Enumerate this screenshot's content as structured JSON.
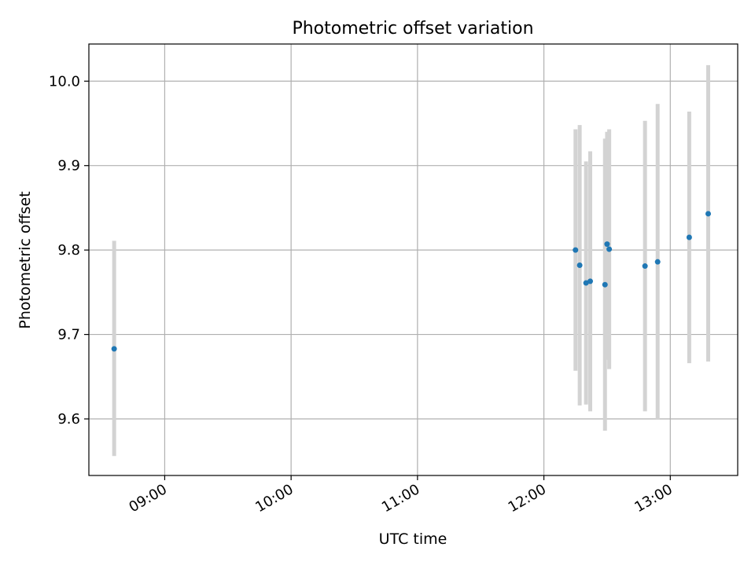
{
  "chart_data": {
    "type": "scatter",
    "title": "Photometric offset variation",
    "xlabel": "UTC time",
    "ylabel": "Photometric offset",
    "grid": true,
    "xlim": [
      "08:24",
      "13:32"
    ],
    "ylim": [
      9.533,
      10.044
    ],
    "x_ticks": [
      "09:00",
      "10:00",
      "11:00",
      "12:00",
      "13:00"
    ],
    "y_ticks": [
      "9.6",
      "9.7",
      "9.8",
      "9.9",
      "10.0"
    ],
    "series": [
      {
        "points": [
          {
            "x": "08:36",
            "y": 9.683,
            "low": 9.556,
            "high": 9.811
          },
          {
            "x": "12:15",
            "y": 9.8,
            "low": 9.657,
            "high": 9.943
          },
          {
            "x": "12:17",
            "y": 9.782,
            "low": 9.616,
            "high": 9.948
          },
          {
            "x": "12:20",
            "y": 9.761,
            "low": 9.617,
            "high": 9.905
          },
          {
            "x": "12:22",
            "y": 9.763,
            "low": 9.609,
            "high": 9.917
          },
          {
            "x": "12:29",
            "y": 9.759,
            "low": 9.586,
            "high": 9.932
          },
          {
            "x": "12:30",
            "y": 9.807,
            "low": 9.67,
            "high": 9.94
          },
          {
            "x": "12:31",
            "y": 9.801,
            "low": 9.659,
            "high": 9.943
          },
          {
            "x": "12:48",
            "y": 9.781,
            "low": 9.609,
            "high": 9.953
          },
          {
            "x": "12:54",
            "y": 9.786,
            "low": 9.599,
            "high": 9.973
          },
          {
            "x": "13:09",
            "y": 9.815,
            "low": 9.666,
            "high": 9.964
          },
          {
            "x": "13:18",
            "y": 9.843,
            "low": 9.668,
            "high": 10.019
          }
        ]
      }
    ],
    "colors": {
      "point": "#1f77b4",
      "errorbar": "#d3d3d3",
      "grid": "#b0b0b0",
      "axes": "#000000"
    }
  }
}
